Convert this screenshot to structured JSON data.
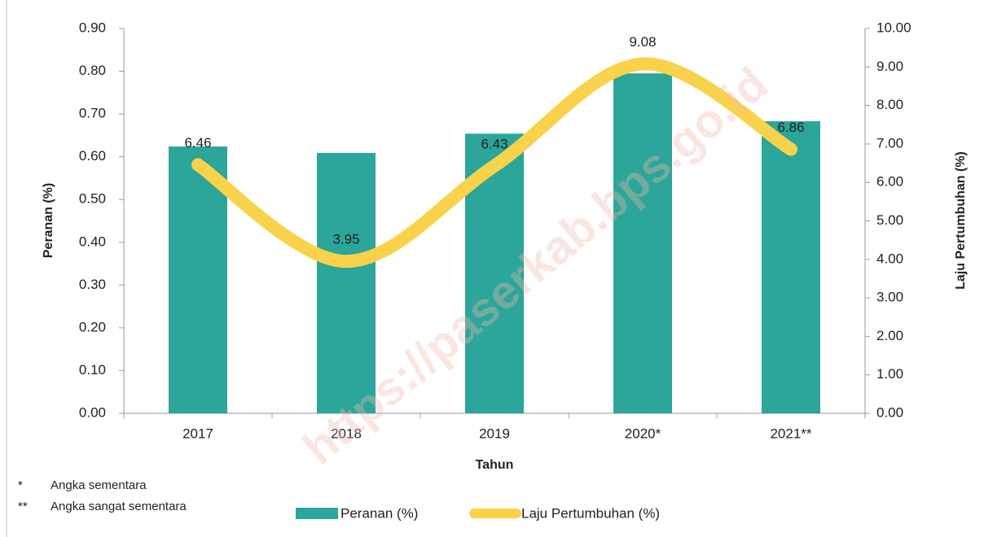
{
  "chart_data": {
    "type": "bar",
    "categories": [
      "2017",
      "2018",
      "2019",
      "2020*",
      "2021**"
    ],
    "series": [
      {
        "name": "Peranan (%)",
        "color": "#2ca59a",
        "type": "bar",
        "values": [
          0.624,
          0.609,
          0.654,
          0.795,
          0.683
        ]
      },
      {
        "name": "Laju Pertumbuhan (%)",
        "color": "#f9d24b",
        "type": "line",
        "axis": "y2",
        "values": [
          6.46,
          3.95,
          6.43,
          9.08,
          6.86
        ]
      }
    ],
    "ylabel": "Peranan (%)",
    "y2label": "Laju Pertumbuhan (%)",
    "xlabel": "Tahun",
    "ylim": [
      0,
      0.9
    ],
    "yticks": [
      {
        "value": 0,
        "label": "0.00"
      },
      {
        "value": 0.1,
        "label": "0.10"
      },
      {
        "value": 0.2,
        "label": "0.20"
      },
      {
        "value": 0.3,
        "label": "0.30"
      },
      {
        "value": 0.4,
        "label": "0.40"
      },
      {
        "value": 0.5,
        "label": "0.50"
      },
      {
        "value": 0.6,
        "label": "0.60"
      },
      {
        "value": 0.7,
        "label": "0.70"
      },
      {
        "value": 0.8,
        "label": "0.80"
      },
      {
        "value": 0.9,
        "label": "0.90"
      }
    ],
    "y2lim": [
      0,
      10
    ],
    "y2ticks": [
      {
        "value": 0,
        "label": "0.00"
      },
      {
        "value": 1,
        "label": "1.00"
      },
      {
        "value": 2,
        "label": "2.00"
      },
      {
        "value": 3,
        "label": "3.00"
      },
      {
        "value": 4,
        "label": "4.00"
      },
      {
        "value": 5,
        "label": "5.00"
      },
      {
        "value": 6,
        "label": "6.00"
      },
      {
        "value": 7,
        "label": "7.00"
      },
      {
        "value": 8,
        "label": "8.00"
      },
      {
        "value": 9,
        "label": "9.00"
      },
      {
        "value": 10,
        "label": "10.00"
      }
    ],
    "notes": [
      "*",
      "Angka sementara",
      "**",
      "Angka sangat sementara"
    ],
    "watermark": "https://paserkab.bps.go.id",
    "legend": "bottom"
  }
}
